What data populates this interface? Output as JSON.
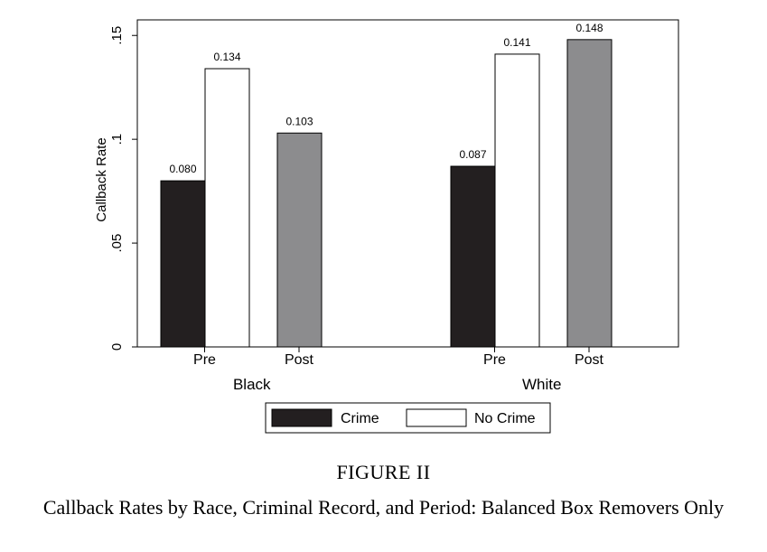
{
  "figure_label": "FIGURE II",
  "caption": "Callback Rates by Race, Criminal Record, and Period: Balanced Box Removers Only",
  "chart_data": {
    "type": "bar",
    "ylabel": "Callback Rate",
    "ylim": [
      0,
      0.1575
    ],
    "yticks": [
      {
        "value": 0,
        "label": "0"
      },
      {
        "value": 0.05,
        "label": ".05"
      },
      {
        "value": 0.1,
        "label": ".1"
      },
      {
        "value": 0.15,
        "label": ".15"
      }
    ],
    "groups": [
      {
        "name": "Black",
        "periods": [
          {
            "label": "Pre",
            "bars": [
              {
                "series": "Crime",
                "value": 0.08,
                "label": "0.080"
              },
              {
                "series": "No Crime",
                "value": 0.134,
                "label": "0.134"
              }
            ]
          },
          {
            "label": "Post",
            "bars": [
              {
                "series": "Post",
                "value": 0.103,
                "label": "0.103"
              }
            ]
          }
        ]
      },
      {
        "name": "White",
        "periods": [
          {
            "label": "Pre",
            "bars": [
              {
                "series": "Crime",
                "value": 0.087,
                "label": "0.087"
              },
              {
                "series": "No Crime",
                "value": 0.141,
                "label": "0.141"
              }
            ]
          },
          {
            "label": "Post",
            "bars": [
              {
                "series": "Post",
                "value": 0.148,
                "label": "0.148"
              }
            ]
          }
        ]
      }
    ],
    "legend": [
      {
        "name": "Crime",
        "color": "#231f20"
      },
      {
        "name": "No Crime",
        "color": "#ffffff"
      }
    ],
    "colors": {
      "Crime": "#231f20",
      "No Crime": "#ffffff",
      "Post": "#8c8c8e"
    },
    "legend_position": "bottom"
  }
}
